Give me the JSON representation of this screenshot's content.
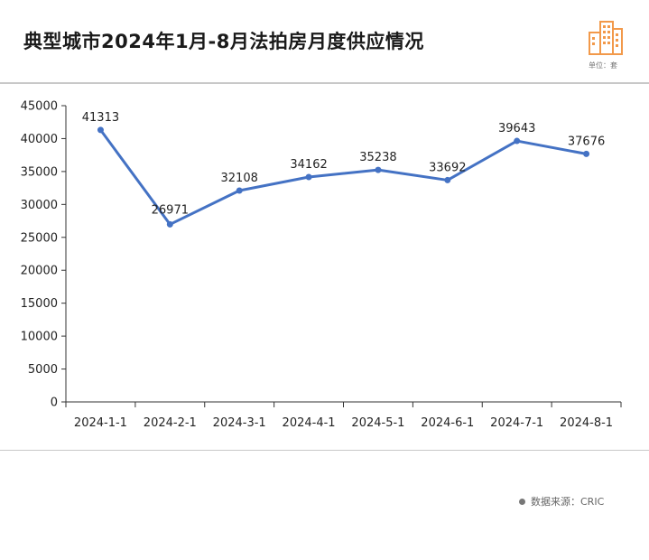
{
  "header": {
    "title": "典型城市2024年1月-8月法拍房月度供应情况",
    "unit": "单位：套"
  },
  "footer": {
    "source": "数据来源：CRIC"
  },
  "colors": {
    "line": "#4472C4",
    "axis": "#333333",
    "logo": "#F2994A"
  },
  "chart_data": {
    "type": "line",
    "title": "典型城市2024年1月-8月法拍房月度供应情况",
    "xlabel": "",
    "ylabel": "",
    "categories": [
      "2024-1-1",
      "2024-2-1",
      "2024-3-1",
      "2024-4-1",
      "2024-5-1",
      "2024-6-1",
      "2024-7-1",
      "2024-8-1"
    ],
    "series": [
      {
        "values": [
          41313,
          26971,
          32108,
          34162,
          35238,
          33692,
          39643,
          37676
        ]
      }
    ],
    "ylim": [
      0,
      45000
    ],
    "yticks": [
      0,
      5000,
      10000,
      15000,
      20000,
      25000,
      30000,
      35000,
      40000,
      45000
    ],
    "grid": false,
    "data_labels": true
  }
}
